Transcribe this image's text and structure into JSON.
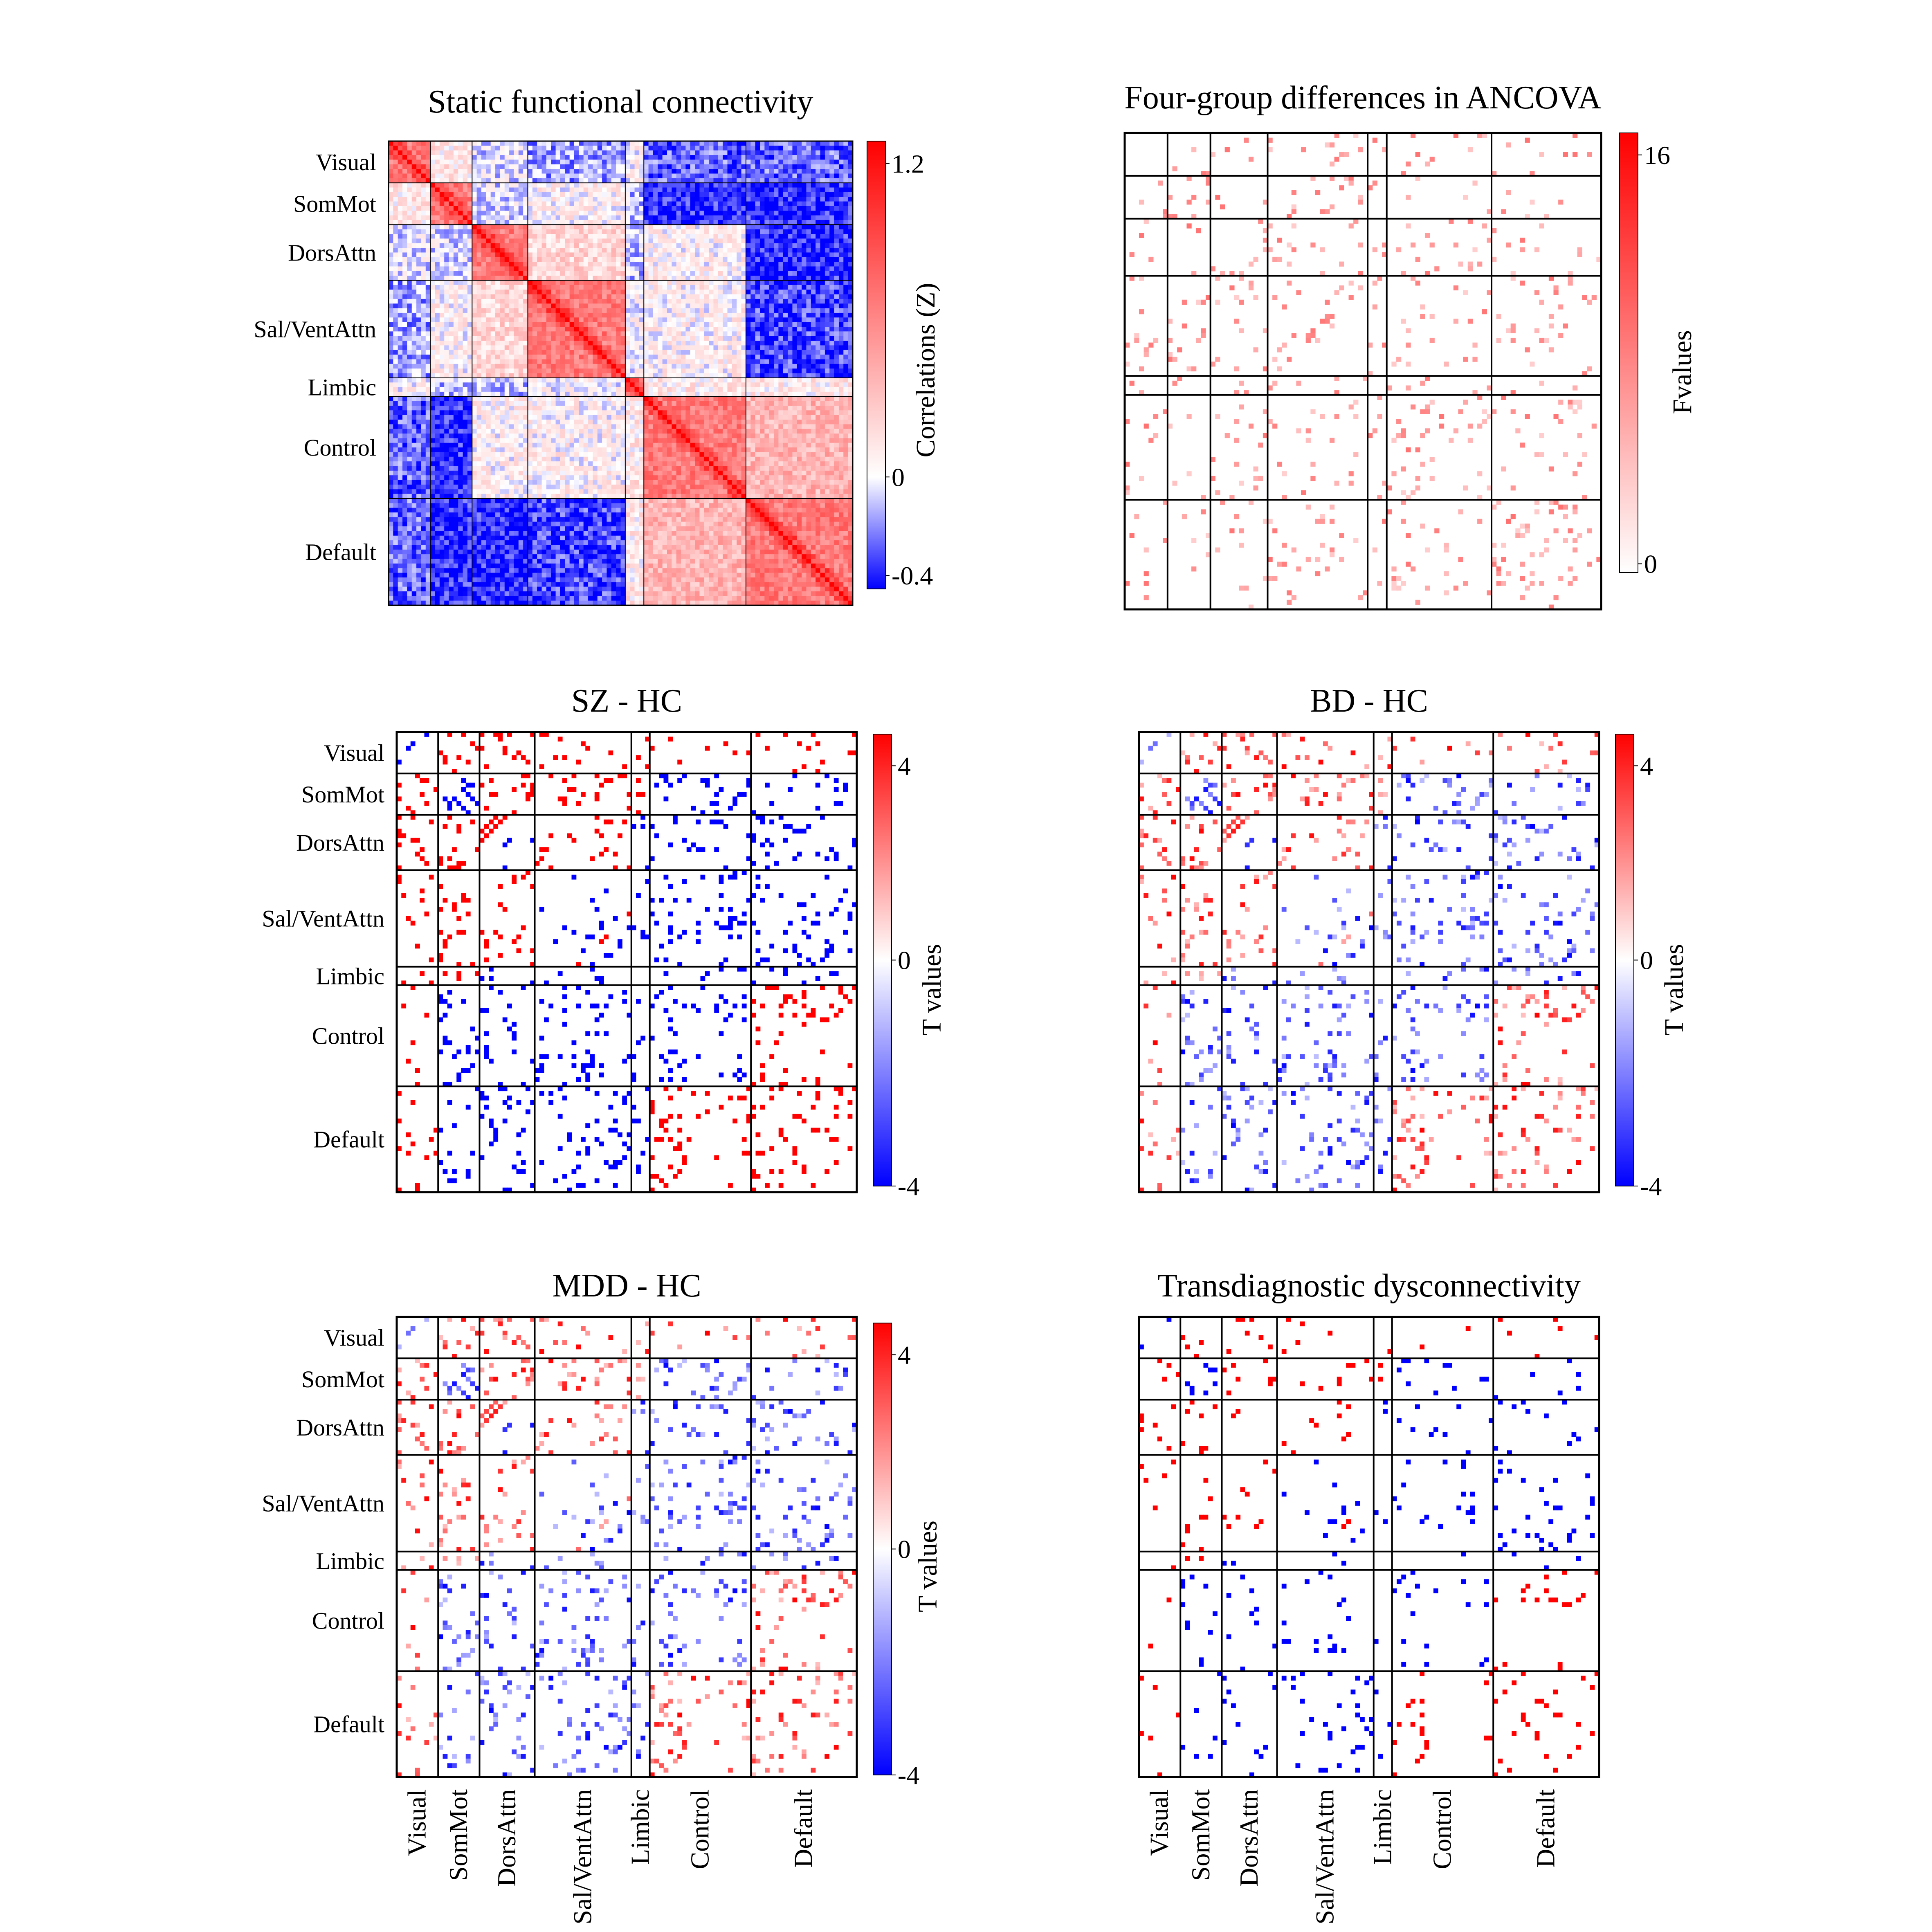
{
  "figure": {
    "networks": [
      "Visual",
      "SomMot",
      "DorsAttn",
      "Sal/VentAttn",
      "Limbic",
      "Control",
      "Default"
    ],
    "network_row_labels": [
      [
        "Visual",
        "SomMot",
        "DorsAttn",
        "Sal/VentAttn",
        "Limbic",
        "Control",
        "Default"
      ],
      [
        "Visual",
        "SomMot",
        "DorsAttn",
        "Sal/VentAttn",
        "Limbic",
        "Control",
        "Default"
      ],
      [
        "Visual",
        "SomMot",
        "DorsAttn",
        "Sal/VentAttn",
        "Limbic",
        "Control",
        "Default"
      ]
    ],
    "network_column_labels": [
      [
        "Visual",
        "SomMot",
        "DorsAttn",
        "Sal/VentAttn",
        "Limbic",
        "Control",
        "Default"
      ],
      [
        "Visual",
        "SomMot",
        "DorsAttn",
        "Sal/VentAttn",
        "Limbic",
        "Control",
        "Default"
      ]
    ],
    "network_sizes": [
      9,
      9,
      12,
      21,
      4,
      22,
      23
    ]
  },
  "colors": {
    "positive": "#ff0000",
    "zero": "#ffffff",
    "negative": "#0000ff",
    "grid": "#000000"
  },
  "chart_data": [
    {
      "type": "heatmap",
      "title": "Static functional connectivity",
      "colorbar_label": "Correlations (Z)",
      "colorbar_ticks": [
        "1.2",
        "0",
        "-0.4"
      ],
      "scale": {
        "min": -0.4,
        "max": 1.2,
        "colormap": "blue-white-red"
      },
      "block_means": [
        [
          1.0,
          0.12,
          -0.05,
          -0.15,
          0.02,
          -0.25,
          -0.25
        ],
        [
          0.12,
          1.0,
          -0.05,
          0.05,
          -0.1,
          -0.35,
          -0.35
        ],
        [
          -0.05,
          -0.05,
          1.0,
          0.2,
          -0.1,
          0.05,
          -0.35
        ],
        [
          -0.15,
          0.05,
          0.2,
          1.0,
          0.0,
          0.05,
          -0.3
        ],
        [
          0.02,
          -0.1,
          -0.1,
          0.0,
          1.0,
          0.1,
          0.1
        ],
        [
          -0.25,
          -0.35,
          0.05,
          0.05,
          0.1,
          1.0,
          0.35
        ],
        [
          -0.25,
          -0.35,
          -0.35,
          -0.3,
          0.1,
          0.35,
          1.0
        ]
      ]
    },
    {
      "type": "heatmap",
      "title": "Four-group differences in ANCOVA",
      "colorbar_label": "Fvalues",
      "colorbar_ticks": [
        "16",
        "0"
      ],
      "scale": {
        "min": 0,
        "max": 16,
        "colormap": "white-red"
      },
      "nonzero_cell_density": 0.06
    },
    {
      "type": "heatmap",
      "title": "SZ - HC",
      "colorbar_label": "T values",
      "colorbar_ticks": [
        "4",
        "0",
        "-4"
      ],
      "scale": {
        "min": -4,
        "max": 4,
        "colormap": "blue-white-red"
      },
      "block_signs": [
        [
          -1,
          1,
          1,
          1,
          1,
          1,
          1
        ],
        [
          1,
          -1,
          1,
          1,
          1,
          -1,
          -1
        ],
        [
          1,
          1,
          0,
          1,
          -1,
          -1,
          -1
        ],
        [
          1,
          1,
          1,
          0,
          -1,
          -1,
          -1
        ],
        [
          1,
          1,
          -1,
          -1,
          0,
          -1,
          -1
        ],
        [
          1,
          -1,
          -1,
          1,
          -1,
          -1,
          1
        ],
        [
          1,
          -1,
          -1,
          -1,
          -1,
          1,
          1
        ]
      ],
      "nonzero_cell_density": 0.09
    },
    {
      "type": "heatmap",
      "title": "BD - HC",
      "colorbar_label": "T values",
      "colorbar_ticks": [
        "4",
        "0",
        "-4"
      ],
      "scale": {
        "min": -4,
        "max": 4,
        "colormap": "blue-white-red"
      },
      "block_signs": [
        [
          -1,
          1,
          1,
          1,
          1,
          1,
          1
        ],
        [
          1,
          -1,
          1,
          1,
          1,
          -1,
          -1
        ],
        [
          1,
          1,
          0,
          1,
          -1,
          -1,
          -1
        ],
        [
          1,
          1,
          1,
          0,
          -1,
          -1,
          -1
        ],
        [
          1,
          1,
          -1,
          -1,
          0,
          -1,
          -1
        ],
        [
          1,
          -1,
          -1,
          1,
          -1,
          -1,
          1
        ],
        [
          1,
          -1,
          -1,
          -1,
          -1,
          1,
          1
        ]
      ],
      "nonzero_cell_density": 0.09
    },
    {
      "type": "heatmap",
      "title": "MDD - HC",
      "colorbar_label": "T values",
      "colorbar_ticks": [
        "4",
        "0",
        "-4"
      ],
      "scale": {
        "min": -4,
        "max": 4,
        "colormap": "blue-white-red"
      },
      "block_signs": [
        [
          -1,
          1,
          1,
          1,
          1,
          1,
          1
        ],
        [
          1,
          -1,
          1,
          1,
          1,
          -1,
          -1
        ],
        [
          1,
          1,
          0,
          1,
          -1,
          -1,
          -1
        ],
        [
          1,
          1,
          1,
          0,
          -1,
          -1,
          -1
        ],
        [
          1,
          1,
          -1,
          -1,
          0,
          -1,
          -1
        ],
        [
          1,
          -1,
          -1,
          1,
          -1,
          -1,
          1
        ],
        [
          1,
          -1,
          -1,
          -1,
          -1,
          1,
          1
        ]
      ],
      "nonzero_cell_density": 0.09
    },
    {
      "type": "heatmap",
      "title": "Transdiagnostic dysconnectivity",
      "scale": {
        "min": -4,
        "max": 4,
        "colormap": "blue-white-red"
      },
      "block_signs": [
        [
          -1,
          1,
          1,
          1,
          1,
          1,
          1
        ],
        [
          1,
          -1,
          1,
          1,
          1,
          -1,
          -1
        ],
        [
          1,
          1,
          0,
          1,
          -1,
          -1,
          -1
        ],
        [
          1,
          1,
          1,
          0,
          -1,
          -1,
          -1
        ],
        [
          1,
          1,
          -1,
          -1,
          0,
          -1,
          -1
        ],
        [
          1,
          -1,
          -1,
          1,
          -1,
          -1,
          1
        ],
        [
          1,
          -1,
          -1,
          -1,
          -1,
          1,
          1
        ]
      ],
      "nonzero_cell_density": 0.04
    }
  ]
}
